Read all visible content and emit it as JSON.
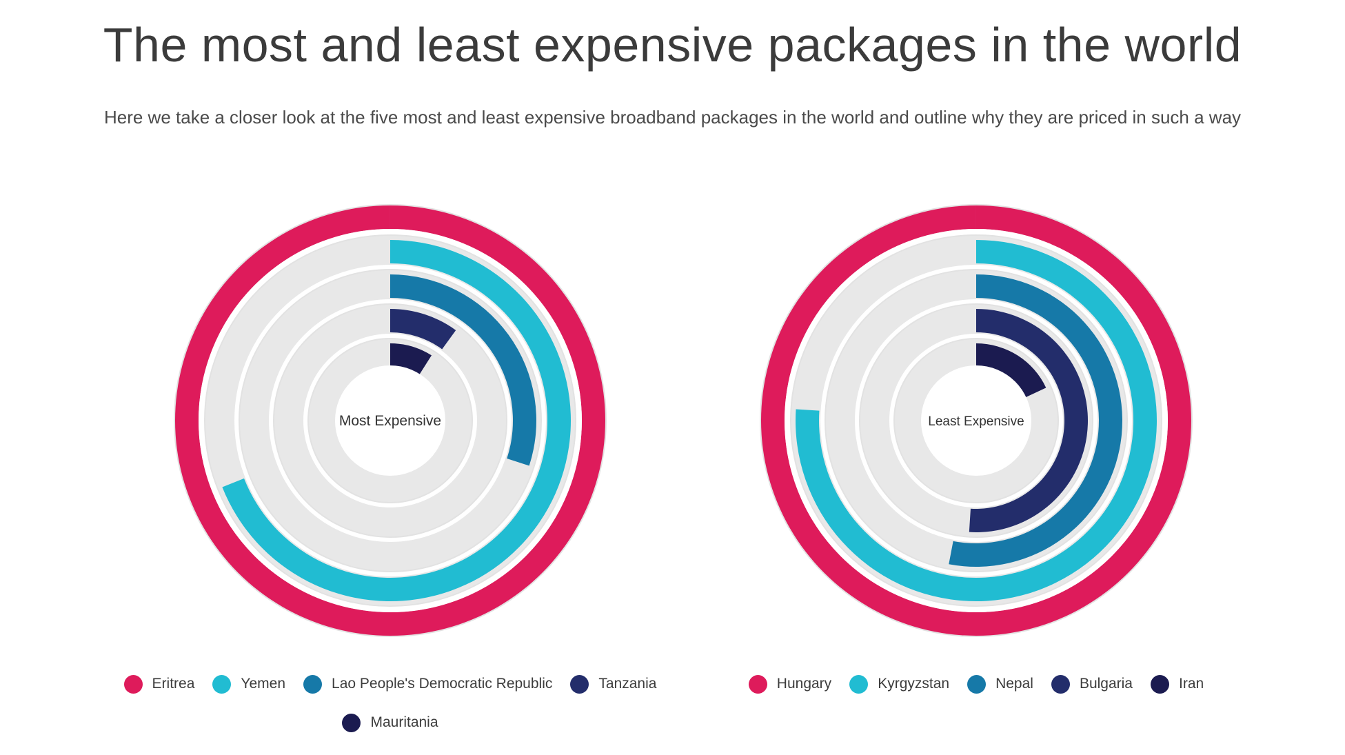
{
  "header": {
    "title": "The most and least expensive packages in the world",
    "subtitle": "Here we take a closer look at the five most and least expensive broadband packages in the world and outline why they are priced in such a way"
  },
  "colors": {
    "track": "#e8e8e8",
    "background": "#ffffff"
  },
  "chart_data": [
    {
      "type": "radial-bar",
      "title": "The most and least expensive packages in the world",
      "center_label": "Most Expensive",
      "max": 100,
      "series": [
        {
          "name": "Eritrea",
          "value": 100,
          "color": "#de1b5b"
        },
        {
          "name": "Yemen",
          "value": 69,
          "color": "#21bcd2"
        },
        {
          "name": "Lao People's Democratic Republic",
          "value": 30,
          "color": "#1679a8"
        },
        {
          "name": "Tanzania",
          "value": 10,
          "color": "#232d6b"
        },
        {
          "name": "Mauritania",
          "value": 9,
          "color": "#1b1b50"
        }
      ]
    },
    {
      "type": "radial-bar",
      "title": "The most and least expensive packages in the world",
      "center_label": "Least Expensive",
      "max": 100,
      "series": [
        {
          "name": "Hungary",
          "value": 100,
          "color": "#de1b5b"
        },
        {
          "name": "Kyrgyzstan",
          "value": 76,
          "color": "#21bcd2"
        },
        {
          "name": "Nepal",
          "value": 53,
          "color": "#1679a8"
        },
        {
          "name": "Bulgaria",
          "value": 51,
          "color": "#232d6b"
        },
        {
          "name": "Iran",
          "value": 18,
          "color": "#1b1b50"
        }
      ]
    }
  ]
}
